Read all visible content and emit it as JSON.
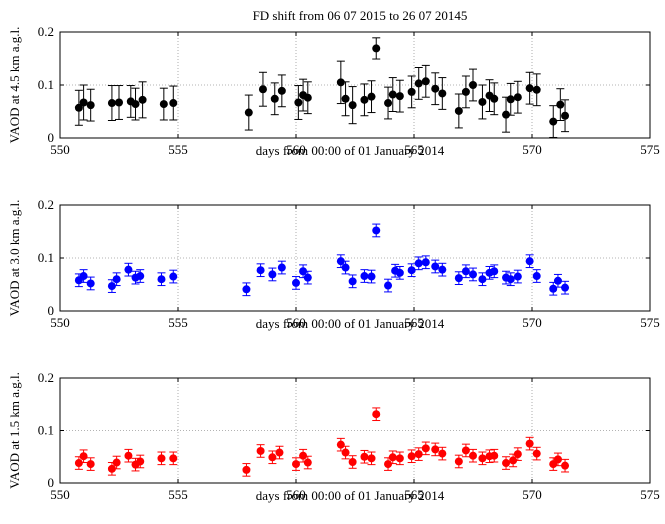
{
  "figure": {
    "title": "FD shift from 06 07 2015 to 26 07 20145"
  },
  "chart_data": [
    {
      "type": "scatter",
      "ylabel": "VAOD at 4.5 km a.g.l.",
      "xlabel": "days from 00:00 of 01 January 2014",
      "xlim": [
        550,
        575
      ],
      "ylim": [
        0,
        0.2
      ],
      "xticks": [
        550,
        555,
        560,
        565,
        570,
        575
      ],
      "yticks": [
        0,
        0.1,
        0.2
      ],
      "grid": "dotted",
      "color": "#000000",
      "series": [
        {
          "x": [
            550.8,
            551.0,
            551.3,
            552.2,
            552.5,
            553.0,
            553.2,
            553.5,
            554.4,
            554.8,
            558.0,
            558.6,
            559.1,
            559.4,
            560.1,
            560.3,
            560.5,
            561.9,
            562.1,
            562.4,
            562.9,
            563.2,
            563.4,
            563.9,
            564.1,
            564.4,
            564.9,
            565.2,
            565.5,
            565.9,
            566.2,
            566.9,
            567.2,
            567.5,
            567.9,
            568.2,
            568.4,
            568.9,
            569.1,
            569.4,
            569.9,
            570.2,
            570.9,
            571.2,
            571.4
          ],
          "y": [
            0.057,
            0.067,
            0.062,
            0.066,
            0.067,
            0.069,
            0.064,
            0.072,
            0.064,
            0.066,
            0.048,
            0.092,
            0.074,
            0.089,
            0.067,
            0.081,
            0.076,
            0.105,
            0.074,
            0.062,
            0.072,
            0.078,
            0.169,
            0.066,
            0.082,
            0.079,
            0.087,
            0.103,
            0.107,
            0.093,
            0.084,
            0.051,
            0.087,
            0.1,
            0.068,
            0.08,
            0.074,
            0.044,
            0.073,
            0.077,
            0.094,
            0.091,
            0.031,
            0.063,
            0.042
          ],
          "err": [
            0.033,
            0.033,
            0.03,
            0.033,
            0.032,
            0.03,
            0.03,
            0.034,
            0.03,
            0.032,
            0.033,
            0.032,
            0.03,
            0.03,
            0.032,
            0.03,
            0.03,
            0.04,
            0.032,
            0.035,
            0.03,
            0.03,
            0.02,
            0.03,
            0.032,
            0.03,
            0.03,
            0.03,
            0.03,
            0.03,
            0.03,
            0.032,
            0.03,
            0.03,
            0.032,
            0.03,
            0.03,
            0.033,
            0.03,
            0.03,
            0.03,
            0.03,
            0.03,
            0.03,
            0.03
          ]
        }
      ]
    },
    {
      "type": "scatter",
      "ylabel": "VAOD at 3.0 km a.g.l.",
      "xlabel": "days from 00:00 of 01 January 2014",
      "xlim": [
        550,
        575
      ],
      "ylim": [
        0,
        0.2
      ],
      "xticks": [
        550,
        555,
        560,
        565,
        570,
        575
      ],
      "yticks": [
        0,
        0.1,
        0.2
      ],
      "grid": "dotted",
      "color": "#0000ff",
      "series": [
        {
          "x": [
            550.8,
            551.0,
            551.3,
            552.2,
            552.4,
            552.9,
            553.2,
            553.4,
            554.3,
            554.8,
            557.9,
            558.5,
            559.0,
            559.4,
            560.0,
            560.3,
            560.5,
            561.9,
            562.1,
            562.4,
            562.9,
            563.2,
            563.4,
            563.9,
            564.2,
            564.4,
            564.9,
            565.2,
            565.5,
            565.9,
            566.2,
            566.9,
            567.2,
            567.5,
            567.9,
            568.2,
            568.4,
            568.9,
            569.1,
            569.4,
            569.9,
            570.2,
            570.9,
            571.1,
            571.4
          ],
          "y": [
            0.058,
            0.066,
            0.052,
            0.047,
            0.06,
            0.078,
            0.063,
            0.066,
            0.06,
            0.065,
            0.041,
            0.077,
            0.069,
            0.082,
            0.053,
            0.075,
            0.063,
            0.094,
            0.082,
            0.056,
            0.066,
            0.065,
            0.152,
            0.048,
            0.076,
            0.072,
            0.077,
            0.09,
            0.092,
            0.084,
            0.078,
            0.062,
            0.075,
            0.069,
            0.06,
            0.072,
            0.075,
            0.063,
            0.06,
            0.065,
            0.094,
            0.066,
            0.042,
            0.057,
            0.044
          ]
        }
      ]
    },
    {
      "type": "scatter",
      "ylabel": "VAOD at 1.5 km a.g.l.",
      "xlabel": "days from 00:00 of 01 January 2014",
      "xlim": [
        550,
        575
      ],
      "ylim": [
        0,
        0.2
      ],
      "xticks": [
        550,
        555,
        560,
        565,
        570,
        575
      ],
      "yticks": [
        0,
        0.1,
        0.2
      ],
      "grid": "dotted",
      "color": "#ff0000",
      "series": [
        {
          "x": [
            550.8,
            551.0,
            551.3,
            552.2,
            552.4,
            552.9,
            553.2,
            553.4,
            554.3,
            554.8,
            557.9,
            558.5,
            559.0,
            559.3,
            560.0,
            560.3,
            560.5,
            561.9,
            562.1,
            562.4,
            562.9,
            563.2,
            563.4,
            563.9,
            564.1,
            564.4,
            564.9,
            565.2,
            565.5,
            565.9,
            566.2,
            566.9,
            567.2,
            567.5,
            567.9,
            568.2,
            568.4,
            568.9,
            569.2,
            569.4,
            569.9,
            570.2,
            570.9,
            571.1,
            571.4
          ],
          "y": [
            0.038,
            0.051,
            0.036,
            0.027,
            0.039,
            0.052,
            0.035,
            0.041,
            0.047,
            0.047,
            0.025,
            0.061,
            0.049,
            0.058,
            0.036,
            0.052,
            0.039,
            0.073,
            0.058,
            0.04,
            0.05,
            0.047,
            0.131,
            0.036,
            0.049,
            0.047,
            0.051,
            0.055,
            0.066,
            0.064,
            0.056,
            0.041,
            0.062,
            0.052,
            0.047,
            0.051,
            0.052,
            0.038,
            0.043,
            0.055,
            0.075,
            0.056,
            0.036,
            0.045,
            0.033
          ]
        }
      ]
    }
  ]
}
